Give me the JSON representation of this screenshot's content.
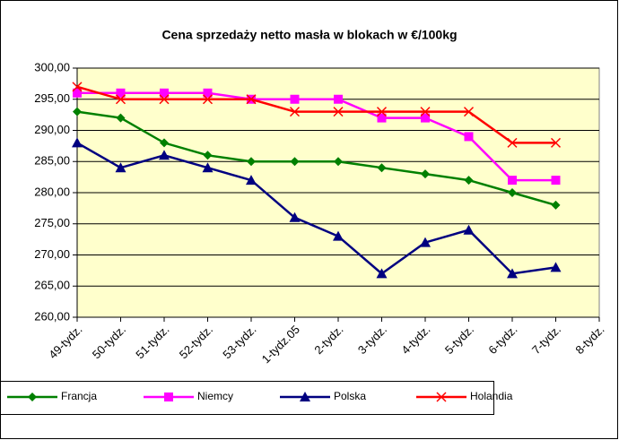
{
  "chart_data": {
    "type": "line",
    "title": "Cena sprzedaży netto masła w blokach w €/100kg",
    "categories": [
      "49-tydz.",
      "50-tydz.",
      "51-tydz.",
      "52-tydz.",
      "53-tydz.",
      "1-tydz.05",
      "2-tydz.",
      "3-tydz.",
      "4-tydz.",
      "5-tydz.",
      "6-tydz.",
      "7-tydz.",
      "8-tydz."
    ],
    "series": [
      {
        "name": "Francja",
        "color": "#008000",
        "marker": "diamond",
        "values": [
          293,
          292,
          288,
          286,
          285,
          285,
          285,
          284,
          283,
          282,
          280,
          278,
          null
        ]
      },
      {
        "name": "Niemcy",
        "color": "#ff00ff",
        "marker": "square",
        "values": [
          296,
          296,
          296,
          296,
          295,
          295,
          295,
          292,
          292,
          289,
          282,
          282,
          null
        ]
      },
      {
        "name": "Polska",
        "color": "#000080",
        "marker": "triangle",
        "values": [
          288,
          284,
          286,
          284,
          282,
          276,
          273,
          267,
          272,
          274,
          267,
          268,
          null
        ]
      },
      {
        "name": "Holandia",
        "color": "#ff0000",
        "marker": "x",
        "values": [
          297,
          295,
          295,
          295,
          295,
          293,
          293,
          293,
          293,
          293,
          288,
          288,
          null
        ]
      }
    ],
    "ylim": [
      260,
      300
    ],
    "yticks": [
      {
        "value": 260,
        "label": "260,00"
      },
      {
        "value": 265,
        "label": "265,00"
      },
      {
        "value": 270,
        "label": "270,00"
      },
      {
        "value": 275,
        "label": "275,00"
      },
      {
        "value": 280,
        "label": "280,00"
      },
      {
        "value": 285,
        "label": "285,00"
      },
      {
        "value": 290,
        "label": "290,00"
      },
      {
        "value": 295,
        "label": "295,00"
      },
      {
        "value": 300,
        "label": "300,00"
      }
    ],
    "grid": true,
    "background": "#ffffcc",
    "legend": "bottom"
  }
}
